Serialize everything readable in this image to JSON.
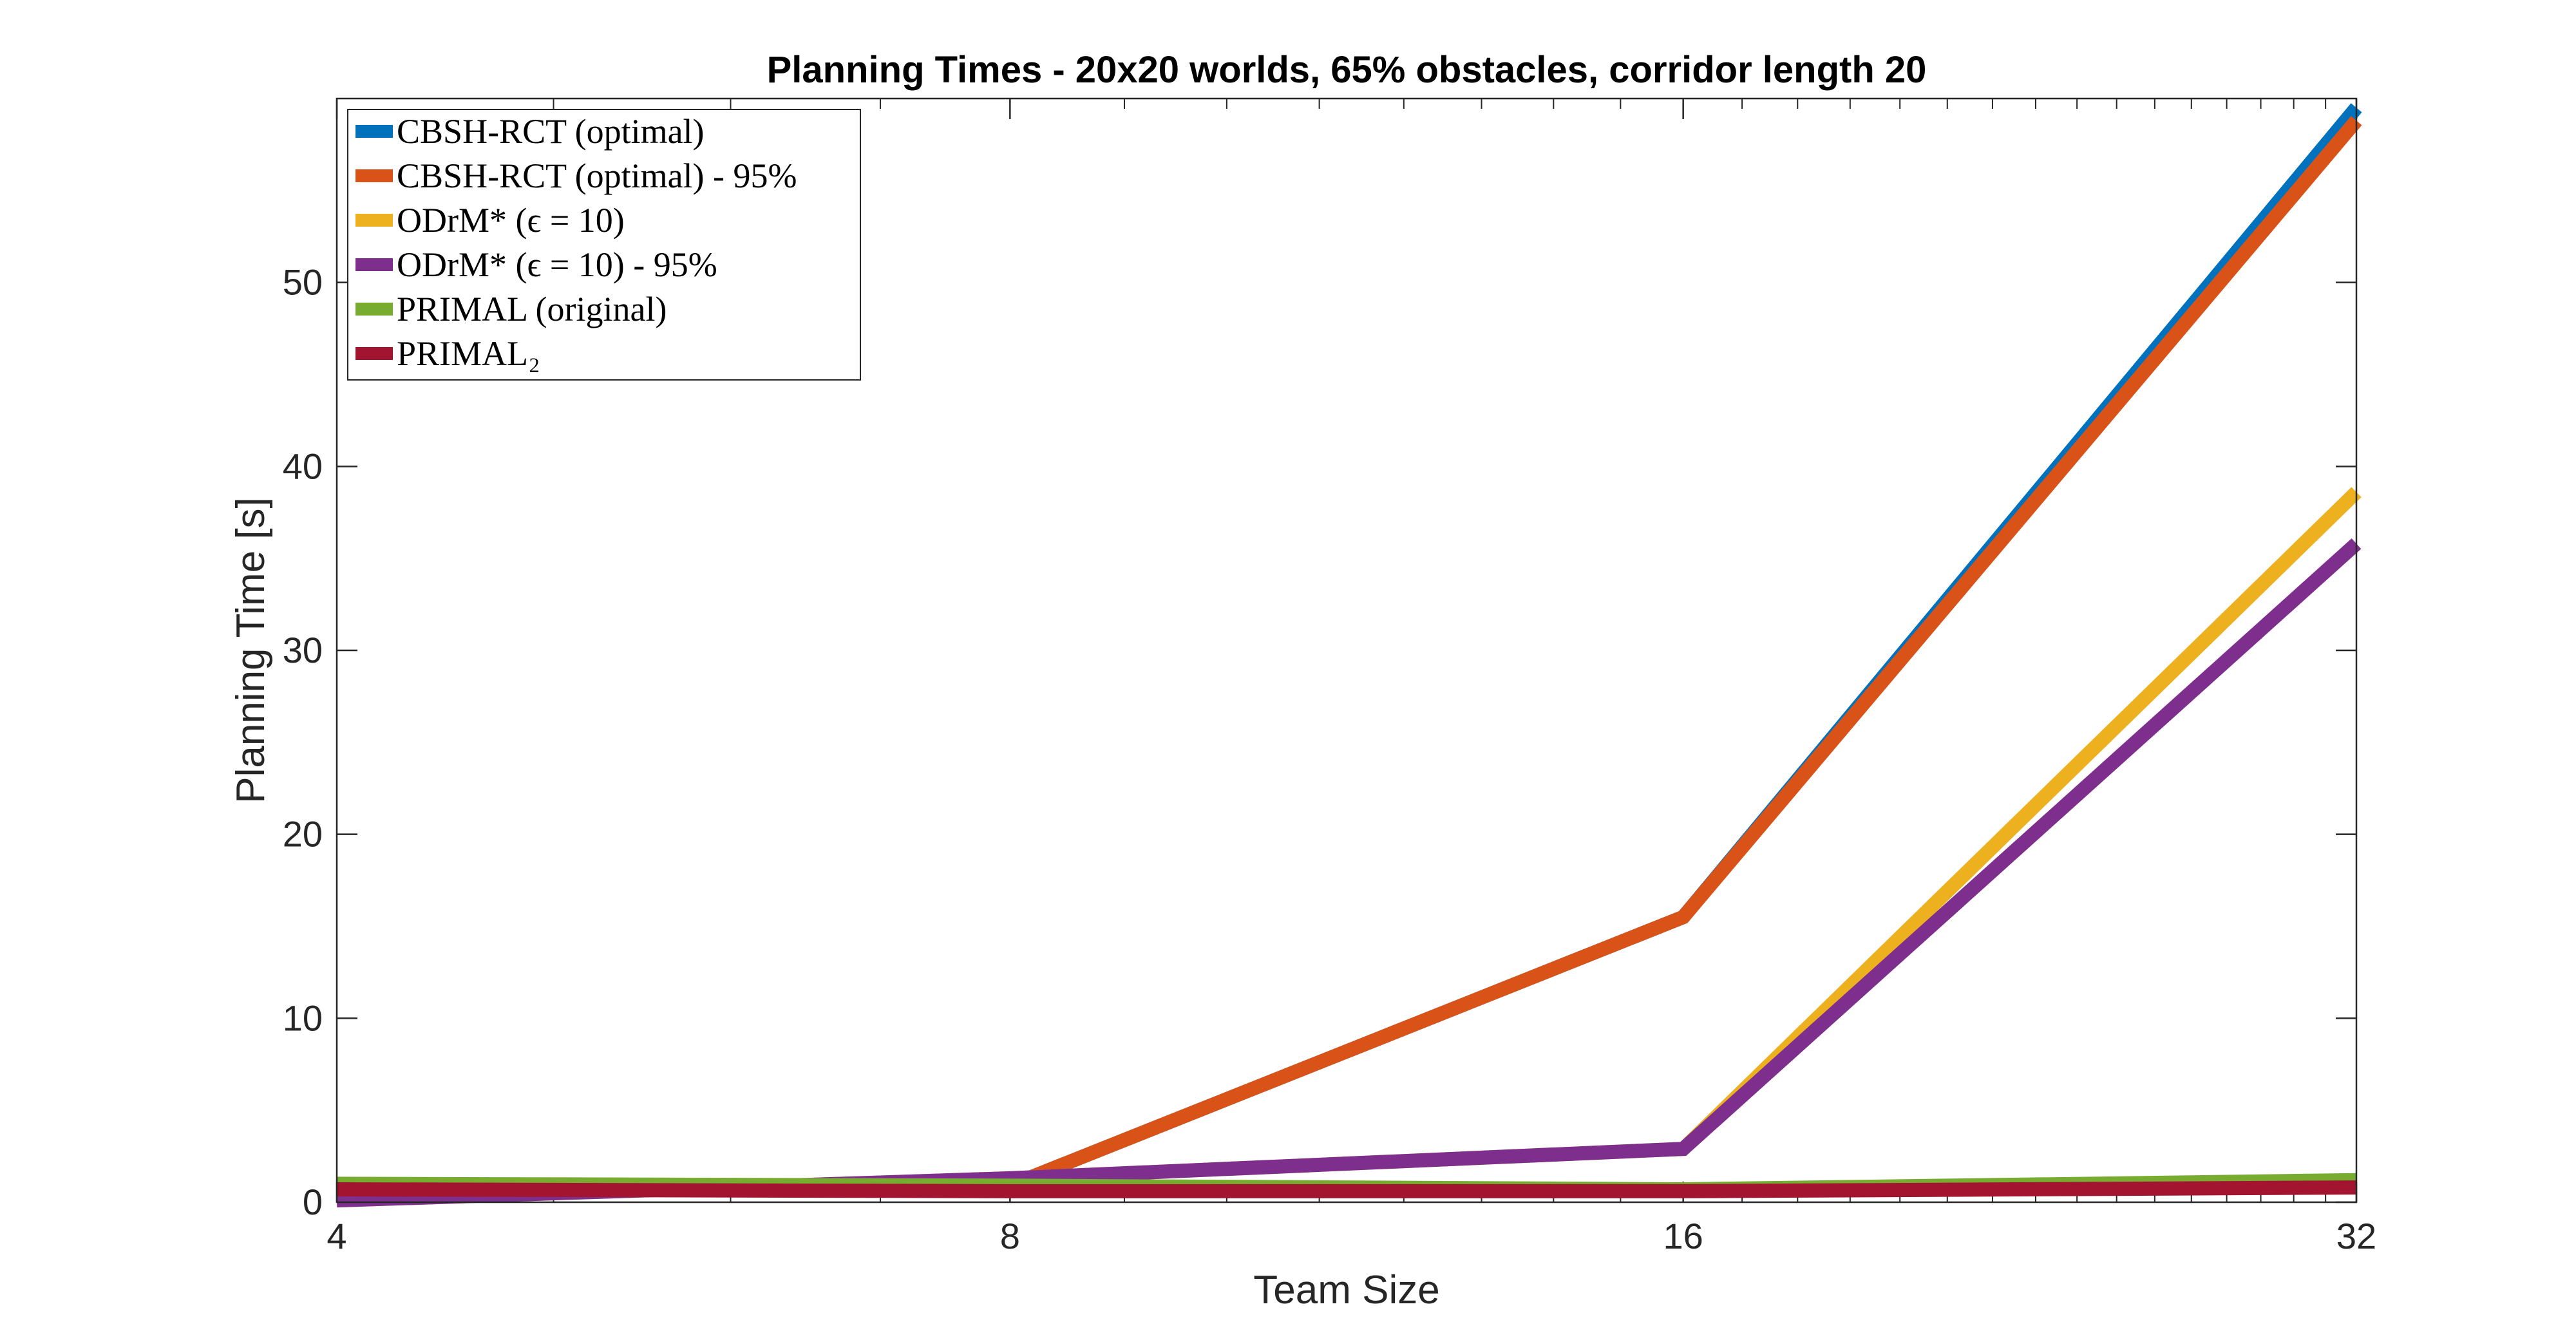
{
  "chart_data": {
    "type": "line",
    "title": "Planning Times - 20x20 worlds, 65% obstacles, corridor length 20",
    "xlabel": "Team Size",
    "ylabel": "Planning Time [s]",
    "x_scale": "log2",
    "categories": [
      "4",
      "8",
      "16",
      "32"
    ],
    "x": [
      4,
      8,
      16,
      32
    ],
    "xlim": [
      4,
      32
    ],
    "ylim": [
      0,
      60
    ],
    "y_ticks": [
      0,
      10,
      20,
      30,
      40,
      50
    ],
    "grid": false,
    "box": true,
    "legend_position": "top-left",
    "series": [
      {
        "name": "CBSH-RCT (optimal)",
        "color": "#0072BD",
        "values": [
          0.8,
          0.9,
          15.5,
          59.5
        ]
      },
      {
        "name": "CBSH-RCT (optimal) - 95%",
        "color": "#D95319",
        "values": [
          0.8,
          0.9,
          15.5,
          58.8
        ]
      },
      {
        "name": "ODrM* (ϵ = 10)",
        "color": "#EDB120",
        "values": [
          0.1,
          1.3,
          2.9,
          38.6
        ]
      },
      {
        "name": "ODrM* (ϵ = 10) - 95%",
        "color": "#7E2F8E",
        "values": [
          0.1,
          1.3,
          2.9,
          35.8
        ]
      },
      {
        "name": "PRIMAL (original)",
        "color": "#77AC30",
        "values": [
          1.0,
          0.9,
          0.7,
          1.2
        ]
      },
      {
        "name": "PRIMAL₂",
        "color": "#A2142F",
        "values": [
          0.7,
          0.6,
          0.6,
          0.8
        ]
      }
    ]
  }
}
